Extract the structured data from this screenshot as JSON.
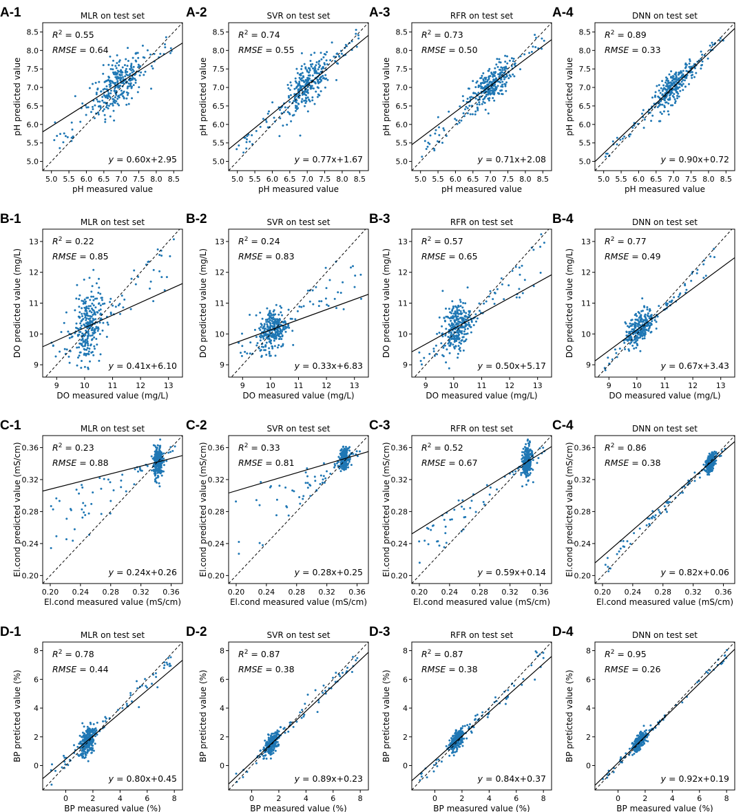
{
  "chart_data": [
    {
      "panel": "A-1",
      "type": "scatter",
      "title": "MLR on test set",
      "xlabel": "pH measured value",
      "ylabel": "pH predicted value",
      "xlim": [
        4.75,
        8.75
      ],
      "ylim": [
        4.75,
        8.75
      ],
      "xticks": [
        "5.0",
        "5.5",
        "6.0",
        "6.5",
        "7.0",
        "7.5",
        "8.0",
        "8.5"
      ],
      "yticks": [
        "5.0",
        "5.5",
        "6.0",
        "6.5",
        "7.0",
        "7.5",
        "8.0",
        "8.5"
      ],
      "r2": "0.55",
      "rmse": "0.64",
      "equation": "0.60x+2.95",
      "slope": 0.6,
      "intercept": 2.95,
      "point_color": "#1f77b4",
      "cluster": [
        6.9,
        7.1,
        0.35,
        0.35
      ],
      "spread": "medium"
    },
    {
      "panel": "A-2",
      "type": "scatter",
      "title": "SVR on test set",
      "xlabel": "pH measured value",
      "ylabel": "pH predicted value",
      "xlim": [
        4.75,
        8.75
      ],
      "ylim": [
        4.75,
        8.75
      ],
      "xticks": [
        "5.0",
        "5.5",
        "6.0",
        "6.5",
        "7.0",
        "7.5",
        "8.0",
        "8.5"
      ],
      "yticks": [
        "5.0",
        "5.5",
        "6.0",
        "6.5",
        "7.0",
        "7.5",
        "8.0",
        "8.5"
      ],
      "r2": "0.74",
      "rmse": "0.55",
      "equation": "0.77x+1.67",
      "slope": 0.77,
      "intercept": 1.67,
      "point_color": "#1f77b4",
      "cluster": [
        7.0,
        7.1,
        0.35,
        0.3
      ],
      "spread": "medium"
    },
    {
      "panel": "A-3",
      "type": "scatter",
      "title": "RFR on test set",
      "xlabel": "pH measured value",
      "ylabel": "pH predicted value",
      "xlim": [
        4.75,
        8.75
      ],
      "ylim": [
        4.75,
        8.75
      ],
      "xticks": [
        "5.0",
        "5.5",
        "6.0",
        "6.5",
        "7.0",
        "7.5",
        "8.0",
        "8.5"
      ],
      "yticks": [
        "5.0",
        "5.5",
        "6.0",
        "6.5",
        "7.0",
        "7.5",
        "8.0",
        "8.5"
      ],
      "r2": "0.73",
      "rmse": "0.50",
      "equation": "0.71x+2.08",
      "slope": 0.71,
      "intercept": 2.08,
      "point_color": "#1f77b4",
      "cluster": [
        7.0,
        7.05,
        0.3,
        0.25
      ],
      "spread": "medium"
    },
    {
      "panel": "A-4",
      "type": "scatter",
      "title": "DNN on test set",
      "xlabel": "pH measured value",
      "ylabel": "pH predicted value",
      "xlim": [
        4.75,
        8.75
      ],
      "ylim": [
        4.75,
        8.75
      ],
      "xticks": [
        "5.0",
        "5.5",
        "6.0",
        "6.5",
        "7.0",
        "7.5",
        "8.0",
        "8.5"
      ],
      "yticks": [
        "5.0",
        "5.5",
        "6.0",
        "6.5",
        "7.0",
        "7.5",
        "8.0",
        "8.5"
      ],
      "r2": "0.89",
      "rmse": "0.33",
      "equation": "0.90x+0.72",
      "slope": 0.9,
      "intercept": 0.72,
      "point_color": "#1f77b4",
      "cluster": [
        7.0,
        7.0,
        0.3,
        0.2
      ],
      "spread": "low"
    },
    {
      "panel": "B-1",
      "type": "scatter",
      "title": "MLR on test set",
      "xlabel": "DO measured value (mg/L)",
      "ylabel": "DO predicted value (mg/L)",
      "xlim": [
        8.5,
        13.5
      ],
      "ylim": [
        8.6,
        13.4
      ],
      "xticks": [
        "9",
        "10",
        "11",
        "12",
        "13"
      ],
      "yticks": [
        "9",
        "10",
        "11",
        "12",
        "13"
      ],
      "r2": "0.22",
      "rmse": "0.85",
      "equation": "0.41x+6.10",
      "slope": 0.41,
      "intercept": 6.1,
      "point_color": "#1f77b4",
      "cluster": [
        10.1,
        10.3,
        0.25,
        0.6
      ],
      "spread": "high"
    },
    {
      "panel": "B-2",
      "type": "scatter",
      "title": "SVR on test set",
      "xlabel": "DO measured value (mg/L)",
      "ylabel": "DO predicted value (mg/L)",
      "xlim": [
        8.5,
        13.5
      ],
      "ylim": [
        8.6,
        13.4
      ],
      "xticks": [
        "9",
        "10",
        "11",
        "12",
        "13"
      ],
      "yticks": [
        "9",
        "10",
        "11",
        "12",
        "13"
      ],
      "r2": "0.24",
      "rmse": "0.83",
      "equation": "0.33x+6.83",
      "slope": 0.33,
      "intercept": 6.83,
      "point_color": "#1f77b4",
      "cluster": [
        10.1,
        10.2,
        0.25,
        0.35
      ],
      "spread": "high"
    },
    {
      "panel": "B-3",
      "type": "scatter",
      "title": "RFR on test set",
      "xlabel": "DO measured value (mg/L)",
      "ylabel": "DO predicted value (mg/L)",
      "xlim": [
        8.5,
        13.5
      ],
      "ylim": [
        8.6,
        13.4
      ],
      "xticks": [
        "9",
        "10",
        "11",
        "12",
        "13"
      ],
      "yticks": [
        "9",
        "10",
        "11",
        "12",
        "13"
      ],
      "r2": "0.57",
      "rmse": "0.65",
      "equation": "0.50x+5.17",
      "slope": 0.5,
      "intercept": 5.17,
      "point_color": "#1f77b4",
      "cluster": [
        10.1,
        10.3,
        0.25,
        0.4
      ],
      "spread": "medium"
    },
    {
      "panel": "B-4",
      "type": "scatter",
      "title": "DNN on test set",
      "xlabel": "DO measured value (mg/L)",
      "ylabel": "DO predicted value (mg/L)",
      "xlim": [
        8.5,
        13.5
      ],
      "ylim": [
        8.6,
        13.4
      ],
      "xticks": [
        "9",
        "10",
        "11",
        "12",
        "13"
      ],
      "yticks": [
        "9",
        "10",
        "11",
        "12",
        "13"
      ],
      "r2": "0.77",
      "rmse": "0.49",
      "equation": "0.67x+3.43",
      "slope": 0.67,
      "intercept": 3.43,
      "point_color": "#1f77b4",
      "cluster": [
        10.1,
        10.2,
        0.25,
        0.25
      ],
      "spread": "low"
    },
    {
      "panel": "C-1",
      "type": "scatter",
      "title": "MLR on test set",
      "xlabel": "El.cond measured value (mS/cm)",
      "ylabel": "El.cond predicted value (mS/cm)",
      "xlim": [
        0.19,
        0.375
      ],
      "ylim": [
        0.19,
        0.375
      ],
      "xticks": [
        "0.20",
        "0.24",
        "0.28",
        "0.32",
        "0.36"
      ],
      "yticks": [
        "0.20",
        "0.24",
        "0.28",
        "0.32",
        "0.36"
      ],
      "r2": "0.23",
      "rmse": "0.88",
      "equation": "0.24x+0.26",
      "slope": 0.24,
      "intercept": 0.26,
      "point_color": "#1f77b4",
      "cluster": [
        0.343,
        0.338,
        0.003,
        0.01
      ],
      "spread": "low"
    },
    {
      "panel": "C-2",
      "type": "scatter",
      "title": "SVR on test set",
      "xlabel": "El.cond measured value (mS/cm)",
      "ylabel": "El.cond predicted value (mS/cm)",
      "xlim": [
        0.19,
        0.375
      ],
      "ylim": [
        0.19,
        0.375
      ],
      "xticks": [
        "0.20",
        "0.24",
        "0.28",
        "0.32",
        "0.36"
      ],
      "yticks": [
        "0.20",
        "0.24",
        "0.28",
        "0.32",
        "0.36"
      ],
      "r2": "0.33",
      "rmse": "0.81",
      "equation": "0.28x+0.25",
      "slope": 0.28,
      "intercept": 0.25,
      "point_color": "#1f77b4",
      "cluster": [
        0.343,
        0.341,
        0.003,
        0.006
      ],
      "spread": "low"
    },
    {
      "panel": "C-3",
      "type": "scatter",
      "title": "RFR on test set",
      "xlabel": "El.cond measured value (mS/cm)",
      "ylabel": "El.cond predicted value (mS/cm)",
      "xlim": [
        0.19,
        0.375
      ],
      "ylim": [
        0.19,
        0.375
      ],
      "xticks": [
        "0.20",
        "0.24",
        "0.28",
        "0.32",
        "0.36"
      ],
      "yticks": [
        "0.20",
        "0.24",
        "0.28",
        "0.32",
        "0.36"
      ],
      "r2": "0.52",
      "rmse": "0.67",
      "equation": "0.59x+0.14",
      "slope": 0.59,
      "intercept": 0.14,
      "point_color": "#1f77b4",
      "cluster": [
        0.343,
        0.34,
        0.003,
        0.01
      ],
      "spread": "low"
    },
    {
      "panel": "C-4",
      "type": "scatter",
      "title": "DNN on test set",
      "xlabel": "El.cond measured value (mS/cm)",
      "ylabel": "El.cond predicted value (mS/cm)",
      "xlim": [
        0.19,
        0.375
      ],
      "ylim": [
        0.19,
        0.375
      ],
      "xticks": [
        "0.20",
        "0.24",
        "0.28",
        "0.32",
        "0.36"
      ],
      "yticks": [
        "0.20",
        "0.24",
        "0.28",
        "0.32",
        "0.36"
      ],
      "r2": "0.86",
      "rmse": "0.38",
      "equation": "0.82x+0.06",
      "slope": 0.82,
      "intercept": 0.06,
      "point_color": "#1f77b4",
      "cluster": [
        0.343,
        0.341,
        0.003,
        0.005
      ],
      "spread": "low"
    },
    {
      "panel": "D-1",
      "type": "scatter",
      "title": "MLR on test set",
      "xlabel": "BP measured value (%)",
      "ylabel": "BP pretícted value (%)",
      "xlim": [
        -1.7,
        8.6
      ],
      "ylim": [
        -1.7,
        8.6
      ],
      "xticks": [
        "0",
        "2",
        "4",
        "6",
        "8"
      ],
      "yticks": [
        "0",
        "2",
        "4",
        "6",
        "8"
      ],
      "r2": "0.78",
      "rmse": "0.44",
      "equation": "0.80x+0.45",
      "slope": 0.8,
      "intercept": 0.45,
      "point_color": "#1f77b4",
      "cluster": [
        1.6,
        1.7,
        0.3,
        0.5
      ],
      "spread": "medium"
    },
    {
      "panel": "D-2",
      "type": "scatter",
      "title": "SVR on test set",
      "xlabel": "BP measured value (%)",
      "ylabel": "BP pretícted value (%)",
      "xlim": [
        -1.7,
        8.6
      ],
      "ylim": [
        -1.7,
        8.6
      ],
      "xticks": [
        "0",
        "2",
        "4",
        "6",
        "8"
      ],
      "yticks": [
        "0",
        "2",
        "4",
        "6",
        "8"
      ],
      "r2": "0.87",
      "rmse": "0.38",
      "equation": "0.89x+0.23",
      "slope": 0.89,
      "intercept": 0.23,
      "point_color": "#1f77b4",
      "cluster": [
        1.5,
        1.5,
        0.25,
        0.3
      ],
      "spread": "medium"
    },
    {
      "panel": "D-3",
      "type": "scatter",
      "title": "RFR on test set",
      "xlabel": "BP measured value (%)",
      "ylabel": "BP pretícted value (%)",
      "xlim": [
        -1.7,
        8.6
      ],
      "ylim": [
        -1.7,
        8.6
      ],
      "xticks": [
        "0",
        "2",
        "4",
        "6",
        "8"
      ],
      "yticks": [
        "0",
        "2",
        "4",
        "6",
        "8"
      ],
      "r2": "0.87",
      "rmse": "0.38",
      "equation": "0.84x+0.37",
      "slope": 0.84,
      "intercept": 0.37,
      "point_color": "#1f77b4",
      "cluster": [
        1.6,
        1.7,
        0.25,
        0.3
      ],
      "spread": "medium"
    },
    {
      "panel": "D-4",
      "type": "scatter",
      "title": "DNN on test set",
      "xlabel": "BP measured value (%)",
      "ylabel": "BP pretícted value (%)",
      "xlim": [
        -1.7,
        8.6
      ],
      "ylim": [
        -1.7,
        8.6
      ],
      "xticks": [
        "0",
        "2",
        "4",
        "6",
        "8"
      ],
      "yticks": [
        "0",
        "2",
        "4",
        "6",
        "8"
      ],
      "r2": "0.95",
      "rmse": "0.26",
      "equation": "0.92x+0.19",
      "slope": 0.92,
      "intercept": 0.19,
      "point_color": "#1f77b4",
      "cluster": [
        1.6,
        1.6,
        0.25,
        0.25
      ],
      "spread": "low"
    }
  ]
}
